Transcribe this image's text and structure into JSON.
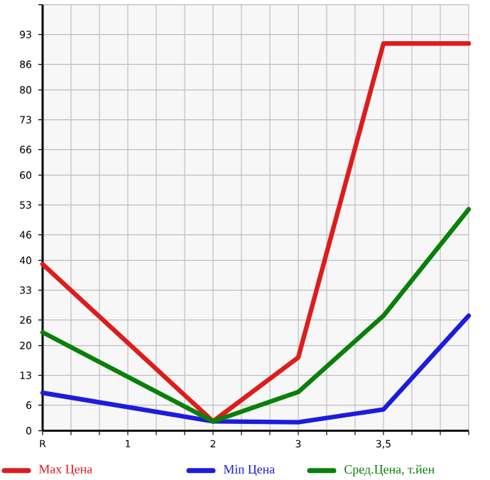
{
  "chart_data": {
    "type": "line",
    "categories": [
      "R",
      "1",
      "2",
      "3",
      "3,5",
      null
    ],
    "series": [
      {
        "name": "Max Цена",
        "color": "#dd1c1c",
        "values": [
          39.1,
          null,
          2.2,
          17.2,
          90.9,
          90.9
        ]
      },
      {
        "name": "Min Цена",
        "color": "#1c1cdd",
        "values": [
          8.9,
          null,
          2.2,
          2.0,
          5.0,
          27.0
        ]
      },
      {
        "name": "Сред.Цена, т.йен",
        "color": "#0a800a",
        "values": [
          23.1,
          null,
          2.2,
          9.1,
          27.0,
          52.0
        ]
      }
    ],
    "ylim": [
      0,
      100
    ],
    "yticks": [
      0,
      6,
      13,
      20,
      26,
      33,
      40,
      46,
      53,
      60,
      66,
      73,
      80,
      86,
      93,
      {
        "value": 100,
        "label": null
      }
    ],
    "grid": true,
    "legend": "bottom",
    "marker": "none",
    "line_style": "solid"
  }
}
